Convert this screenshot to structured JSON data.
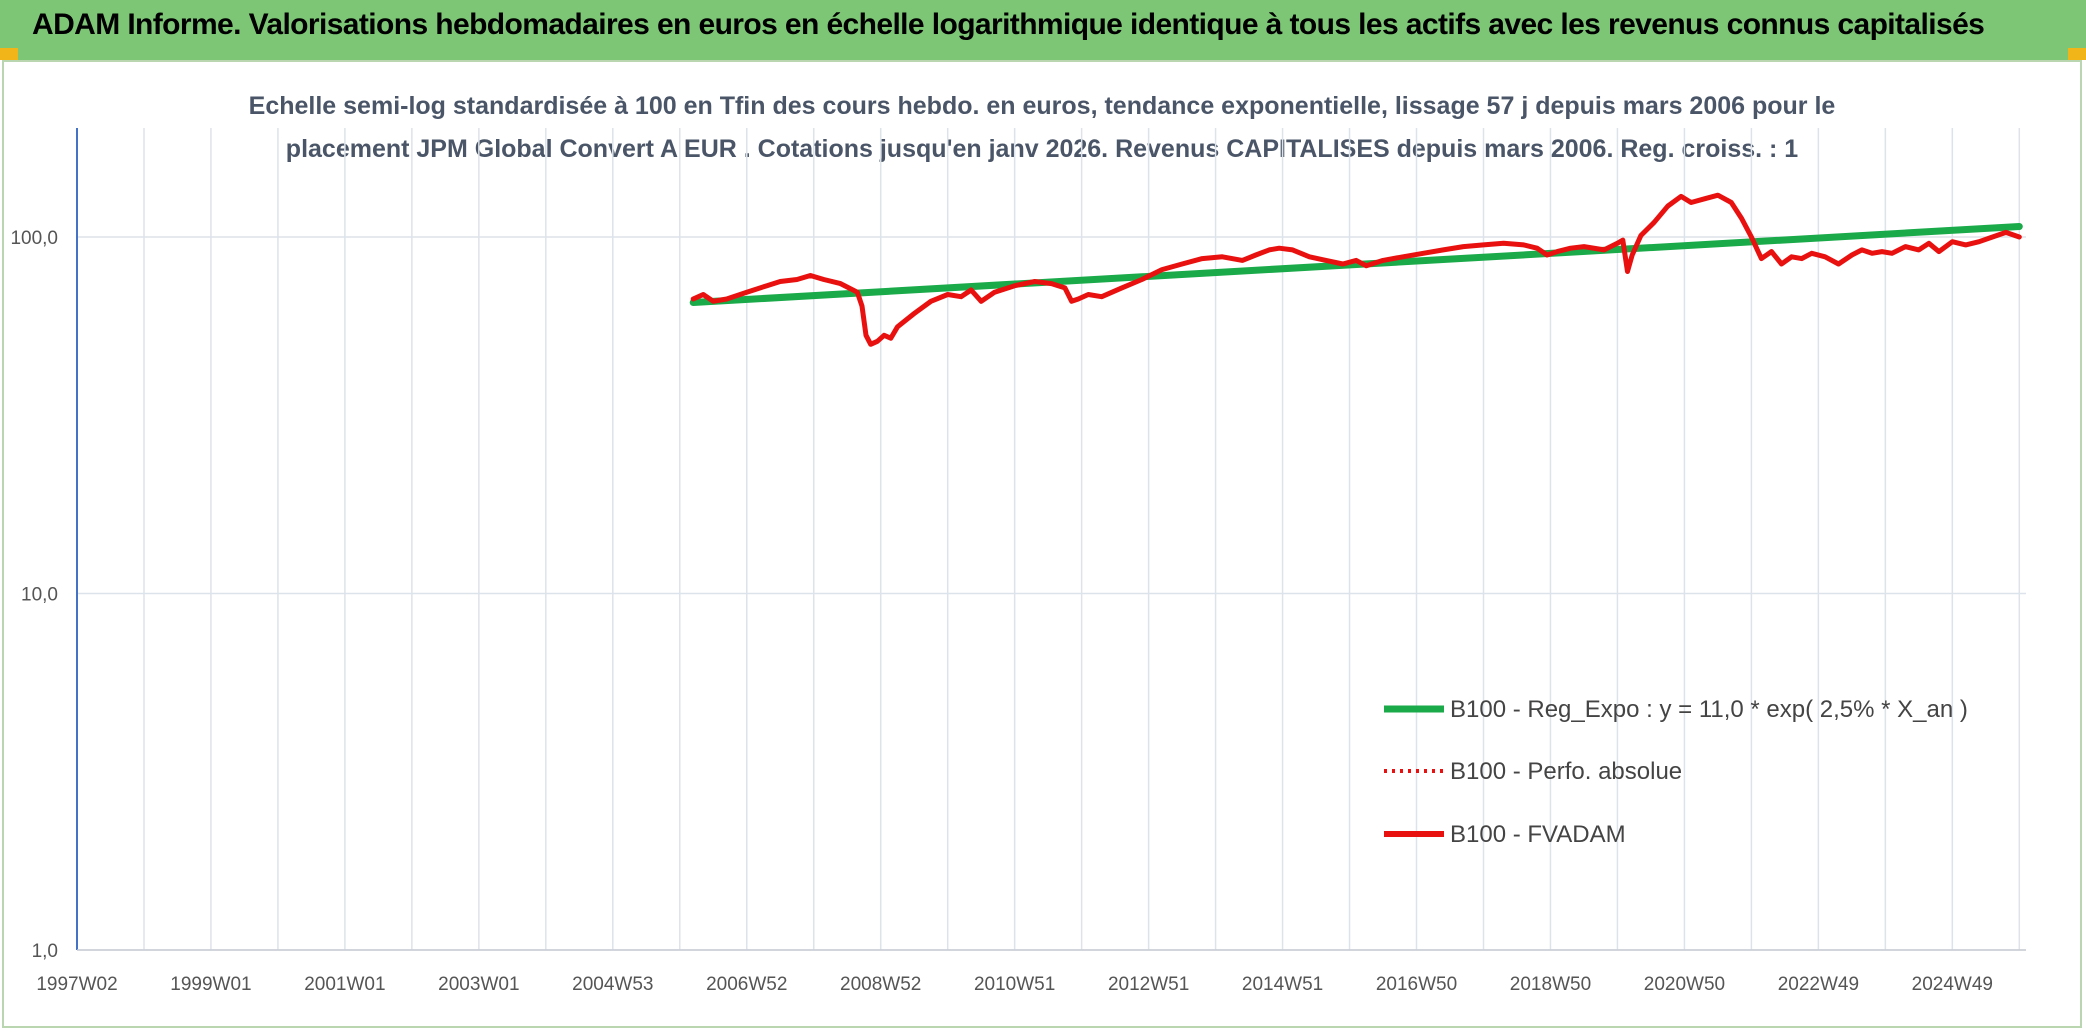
{
  "header": {
    "title": "ADAM Informe. Valorisations hebdomadaires en euros en échelle logarithmique identique à tous les actifs avec les revenus connus capitalisés"
  },
  "colors": {
    "header_bg": "#7dc676",
    "accent_corner": "#f2b519",
    "trend_line": "#1aaa4a",
    "perf_line": "#e8110f",
    "fvadam_line": "#e8110f",
    "grid": "#dde3ea",
    "axis": "#4472c4"
  },
  "chart_data": {
    "type": "line",
    "title_lines": [
      "Echelle semi-log standardisée à 100 en Tfin des cours hebdo. en euros, tendance exponentielle, lissage 57 j depuis mars 2006 pour le",
      "placement JPM Global Convert A EUR . Cotations jusqu'en janv 2026. Revenus CAPITALISES depuis mars 2006. Reg. croiss. : 1"
    ],
    "y_scale": "log",
    "ylim": [
      1,
      180
    ],
    "y_ticks": [
      {
        "value": 100,
        "label": "100,0"
      },
      {
        "value": 10,
        "label": "10,0"
      },
      {
        "value": 1,
        "label": "1,0"
      }
    ],
    "xlim": [
      1997.0,
      2026.1
    ],
    "x_ticks": [
      {
        "value": 1997.0,
        "label": "1997W02"
      },
      {
        "value": 1999.0,
        "label": "1999W01"
      },
      {
        "value": 2001.0,
        "label": "2001W01"
      },
      {
        "value": 2003.0,
        "label": "2003W01"
      },
      {
        "value": 2005.0,
        "label": "2004W53"
      },
      {
        "value": 2007.0,
        "label": "2006W52"
      },
      {
        "value": 2009.0,
        "label": "2008W52"
      },
      {
        "value": 2011.0,
        "label": "2010W51"
      },
      {
        "value": 2013.0,
        "label": "2012W51"
      },
      {
        "value": 2015.0,
        "label": "2014W51"
      },
      {
        "value": 2017.0,
        "label": "2016W50"
      },
      {
        "value": 2019.0,
        "label": "2018W50"
      },
      {
        "value": 2021.0,
        "label": "2020W50"
      },
      {
        "value": 2023.0,
        "label": "2022W49"
      },
      {
        "value": 2025.0,
        "label": "2024W49"
      }
    ],
    "legend_position": "bottom-right",
    "series": [
      {
        "name": "B100 - Reg_Expo : y = 11,0 * exp( 2,5% *  X_an )",
        "style": "solid-thick",
        "color": "#1aaa4a",
        "x": [
          2006.2,
          2026.0
        ],
        "y": [
          65.5,
          107.0
        ]
      },
      {
        "name": "B100 - Perfo. absolue",
        "style": "dotted",
        "color": "#e8110f",
        "x": [],
        "y": []
      },
      {
        "name": "B100 - FVADAM",
        "style": "solid",
        "color": "#e8110f",
        "x": [
          2006.2,
          2006.35,
          2006.5,
          2006.7,
          2007.0,
          2007.3,
          2007.5,
          2007.75,
          2007.95,
          2008.15,
          2008.4,
          2008.65,
          2008.72,
          2008.78,
          2008.85,
          2008.95,
          2009.05,
          2009.15,
          2009.25,
          2009.5,
          2009.75,
          2010.0,
          2010.2,
          2010.35,
          2010.5,
          2010.7,
          2011.0,
          2011.3,
          2011.55,
          2011.75,
          2011.85,
          2011.95,
          2012.1,
          2012.3,
          2012.6,
          2012.9,
          2013.2,
          2013.5,
          2013.8,
          2014.1,
          2014.4,
          2014.6,
          2014.8,
          2014.95,
          2015.15,
          2015.4,
          2015.65,
          2015.9,
          2016.1,
          2016.25,
          2016.5,
          2016.8,
          2017.1,
          2017.4,
          2017.7,
          2018.0,
          2018.3,
          2018.6,
          2018.8,
          2018.95,
          2019.1,
          2019.3,
          2019.5,
          2019.8,
          2020.0,
          2020.08,
          2020.15,
          2020.22,
          2020.35,
          2020.55,
          2020.75,
          2020.95,
          2021.1,
          2021.3,
          2021.5,
          2021.7,
          2021.85,
          2022.0,
          2022.15,
          2022.3,
          2022.45,
          2022.6,
          2022.75,
          2022.9,
          2023.1,
          2023.3,
          2023.5,
          2023.65,
          2023.8,
          2023.95,
          2024.1,
          2024.3,
          2024.5,
          2024.65,
          2024.8,
          2025.0,
          2025.2,
          2025.4,
          2025.6,
          2025.8,
          2026.0
        ],
        "y": [
          67,
          69,
          66,
          67,
          70,
          73,
          75,
          76,
          78,
          76,
          74,
          70,
          64,
          53,
          50,
          51,
          53,
          52,
          56,
          61,
          66,
          69,
          68,
          71,
          66,
          70,
          73,
          75,
          74,
          72,
          66,
          67,
          69,
          68,
          72,
          76,
          81,
          84,
          87,
          88,
          86,
          89,
          92,
          93,
          92,
          88,
          86,
          84,
          86,
          83,
          86,
          88,
          90,
          92,
          94,
          95,
          96,
          95,
          93,
          89,
          91,
          93,
          94,
          92,
          96,
          98,
          80,
          89,
          101,
          110,
          122,
          130,
          125,
          128,
          131,
          125,
          113,
          100,
          87,
          91,
          84,
          88,
          87,
          90,
          88,
          84,
          89,
          92,
          90,
          91,
          90,
          94,
          92,
          96,
          91,
          97,
          95,
          97,
          100,
          103,
          100
        ]
      }
    ]
  }
}
